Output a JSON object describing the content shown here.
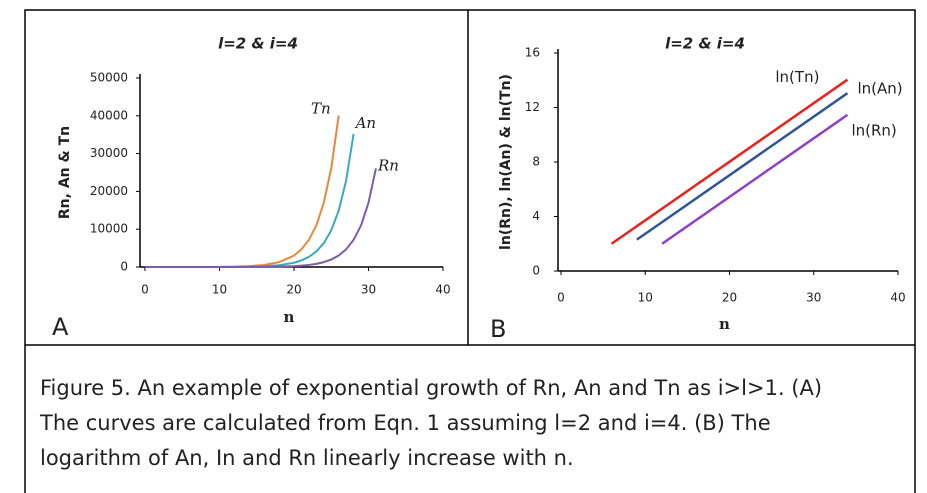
{
  "chart_data": [
    {
      "type": "line",
      "panel": "A",
      "title": "l=2 & i=4",
      "x_label": "n",
      "y_label": "Rn, An & Tn",
      "x": [
        0,
        4,
        8,
        10,
        12,
        14,
        16,
        18,
        20,
        21,
        22,
        23,
        24,
        25,
        26,
        27,
        28,
        29,
        30,
        31
      ],
      "series": [
        {
          "name": "Tn",
          "color": "#e8893a",
          "values": [
            1,
            3,
            17,
            41,
            98,
            230,
            545,
            1290,
            3040,
            4680,
            7190,
            11000,
            17000,
            26100,
            40100,
            null,
            null,
            null,
            null,
            null
          ]
        },
        {
          "name": "An",
          "color": "#3aa8c1",
          "values": [
            0,
            1,
            6,
            15,
            36,
            86,
            202,
            478,
            1130,
            1740,
            2670,
            4110,
            6310,
            9700,
            14900,
            22900,
            35200,
            null,
            null,
            null
          ]
        },
        {
          "name": "Rn",
          "color": "#7b5ea7",
          "values": [
            0,
            0,
            1,
            3,
            7,
            17,
            41,
            98,
            230,
            354,
            545,
            837,
            1290,
            1980,
            3040,
            4680,
            7190,
            11000,
            17000,
            26100
          ]
        }
      ],
      "xlim": [
        0,
        40
      ],
      "xticks": [
        0,
        10,
        20,
        30,
        40
      ],
      "ylim": [
        0,
        50000
      ],
      "yticks": [
        0,
        10000,
        20000,
        30000,
        40000,
        50000
      ],
      "grid": false
    },
    {
      "type": "line",
      "panel": "B",
      "title": "l=2 & i=4",
      "x_label": "n",
      "y_label": "ln(Rn), ln(An) & ln(Tn)",
      "x": [
        6,
        9,
        12,
        34
      ],
      "series": [
        {
          "name": "ln(Tn)",
          "color": "#e8231c",
          "values": [
            2.0,
            3.29,
            4.58,
            14.04
          ]
        },
        {
          "name": "ln(An)",
          "color": "#2f5597",
          "values": [
            null,
            2.3,
            3.59,
            13.05
          ]
        },
        {
          "name": "ln(Rn)",
          "color": "#8e3fc8",
          "values": [
            null,
            null,
            2.0,
            11.46
          ]
        }
      ],
      "xlim": [
        0,
        40
      ],
      "xticks": [
        0,
        10,
        20,
        30,
        40
      ],
      "ylim": [
        0,
        16
      ],
      "yticks": [
        0,
        4,
        8,
        12,
        16
      ],
      "grid": false
    }
  ],
  "caption": [
    "Figure 5. An example of exponential growth of Rn, An and Tn as i>l>1. (A)",
    "The curves are calculated from Eqn. 1 assuming l=2 and i=4. (B) The",
    "logarithm of An, In and Rn linearly increase with n."
  ]
}
